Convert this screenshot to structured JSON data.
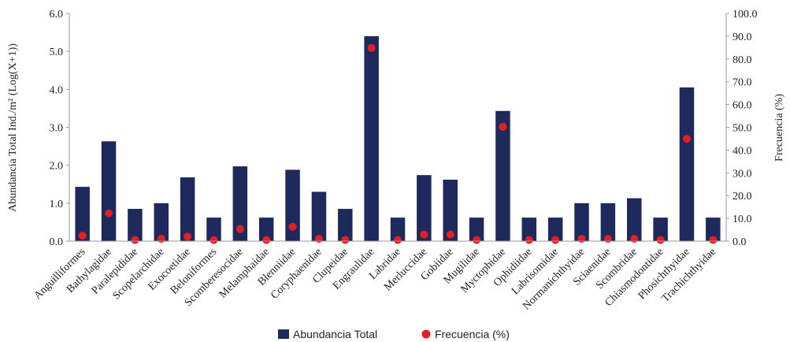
{
  "chart_data": {
    "type": "bar",
    "categories": [
      "Anguilliformes",
      "Bathylagidae",
      "Paralepididae",
      "Scopelarchidae",
      "Exocoetidae",
      "Beloniformes",
      "Scomberesocidae",
      "Melamphaidae",
      "Blenniidae",
      "Coryphaenidae",
      "Clupeidae",
      "Engraulidae",
      "Labridae",
      "Merluccidae",
      "Gobiidae",
      "Mugilidae",
      "Myctophidae",
      "Ophidiidae",
      "Labrisomidae",
      "Normanichthyidae",
      "Sciaenidae",
      "Scombridae",
      "Chiasmodontidae",
      "Phosichthyidae",
      "Trachichthyidae"
    ],
    "series": [
      {
        "name": "Abundancia Total",
        "kind": "bar",
        "axis": "left",
        "color": "#1f2a5c",
        "values": [
          1.43,
          2.63,
          0.85,
          1.0,
          1.68,
          0.62,
          1.97,
          0.62,
          1.88,
          1.3,
          0.85,
          5.4,
          0.62,
          1.74,
          1.62,
          0.62,
          3.43,
          0.62,
          0.62,
          1.0,
          1.0,
          1.13,
          0.62,
          4.05,
          0.62
        ]
      },
      {
        "name": "Frecuencia (%)",
        "kind": "point",
        "axis": "right",
        "color": "#e21f26",
        "values": [
          2.4,
          12.2,
          0.5,
          1.0,
          2.0,
          0.5,
          5.3,
          0.5,
          6.3,
          1.0,
          0.5,
          84.8,
          0.5,
          2.9,
          2.9,
          0.5,
          50.2,
          0.5,
          0.5,
          1.0,
          1.0,
          1.0,
          0.5,
          44.9,
          0.5
        ]
      }
    ],
    "ylabel": "Abundancia Total Ind./m² (Log(X+1))",
    "y2label": "Frecuencia (%)",
    "ylim": [
      0,
      6
    ],
    "y2lim": [
      0,
      100
    ],
    "yticks": [
      "0.0",
      "1.0",
      "2.0",
      "3.0",
      "4.0",
      "5.0",
      "6.0"
    ],
    "y2ticks": [
      "0.0",
      "10.0",
      "20.0",
      "30.0",
      "40.0",
      "50.0",
      "60.0",
      "70.0",
      "80.0",
      "90.0",
      "100.0"
    ],
    "grid": false,
    "legend_position": "bottom"
  }
}
